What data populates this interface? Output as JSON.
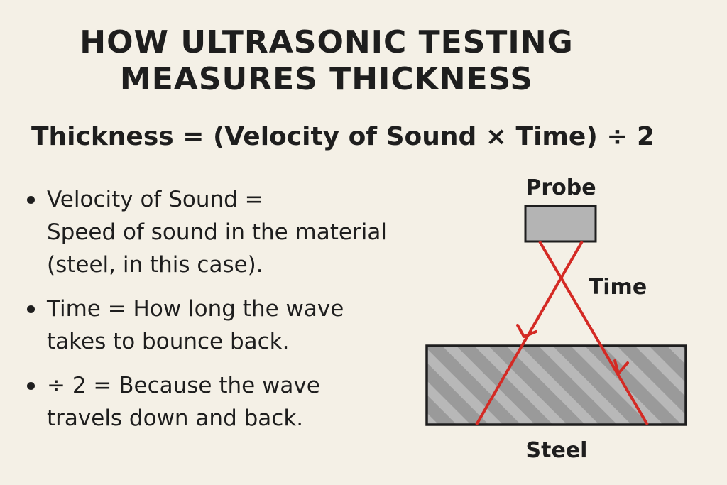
{
  "title": {
    "line1": "HOW ULTRASONIC TESTING",
    "line2": "MEASURES THICKNESS"
  },
  "formula": "Thickness = (Velocity of Sound × Time) ÷ 2",
  "bullets": [
    {
      "lines": [
        "Velocity of Sound =",
        "Speed of sound in the material",
        "(steel, in this case)."
      ]
    },
    {
      "lines": [
        "Time = How long the wave",
        "takes to bounce back."
      ]
    },
    {
      "lines": [
        "÷ 2 = Because the wave",
        "travels down and back."
      ]
    }
  ],
  "diagram": {
    "probe_label": "Probe",
    "time_label": "Time",
    "steel_label": "Steel",
    "colors": {
      "wave": "#d42a24",
      "probe_fill": "#b4b4b4",
      "steel_fill": "#9a9a9a",
      "steel_hatch": "#b8b8b8",
      "outline": "#1e1e1e",
      "background": "#f4f0e6"
    }
  }
}
